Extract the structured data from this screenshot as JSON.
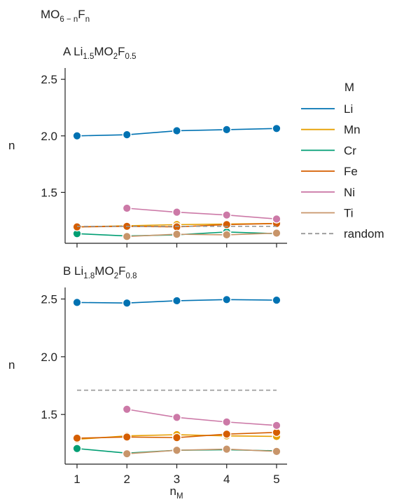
{
  "figure": {
    "title": "MO",
    "title_sub": "6 − n",
    "title_mid": "F",
    "title_sub2": "n"
  },
  "legend": {
    "title": "M",
    "placement": "right",
    "entries": [
      {
        "label": "Li",
        "color": "#0072b2",
        "style": "solid"
      },
      {
        "label": "Mn",
        "color": "#e69f00",
        "style": "solid"
      },
      {
        "label": "Cr",
        "color": "#009e73",
        "style": "solid"
      },
      {
        "label": "Fe",
        "color": "#d55e00",
        "style": "solid"
      },
      {
        "label": "Ni",
        "color": "#cc79a7",
        "style": "solid"
      },
      {
        "label": "Ti",
        "color": "#c8956a",
        "style": "solid"
      },
      {
        "label": "random",
        "color": "#999999",
        "style": "dashed"
      }
    ]
  },
  "chart_data": [
    {
      "type": "line",
      "panel": "A",
      "title_parts": [
        "A Li",
        "1.5",
        "MO",
        "2",
        "F",
        "0.5"
      ],
      "x": [
        1,
        2,
        3,
        4,
        5
      ],
      "xlabel": "",
      "ylabel": "n",
      "ylim": [
        1.05,
        2.6
      ],
      "yticks": [
        1.5,
        2.0,
        2.5
      ],
      "ytick_labels": [
        "1.5",
        "2.0",
        "2.5"
      ],
      "grid": false,
      "series": [
        {
          "name": "Li",
          "color": "#0072b2",
          "values": [
            2.0,
            2.01,
            2.045,
            2.055,
            2.065
          ]
        },
        {
          "name": "Mn",
          "color": "#e69f00",
          "values": [
            1.195,
            1.205,
            1.215,
            1.22,
            1.225
          ]
        },
        {
          "name": "Cr",
          "color": "#009e73",
          "values": [
            1.135,
            1.115,
            1.125,
            1.15,
            1.135
          ]
        },
        {
          "name": "Fe",
          "color": "#d55e00",
          "values": [
            1.195,
            1.2,
            1.195,
            1.215,
            1.225
          ]
        },
        {
          "name": "Ni",
          "color": "#cc79a7",
          "values": [
            null,
            1.36,
            1.325,
            1.3,
            1.265
          ]
        },
        {
          "name": "Ti",
          "color": "#c8956a",
          "values": [
            null,
            1.11,
            1.13,
            1.125,
            1.14
          ]
        },
        {
          "name": "random",
          "color": "#999999",
          "dashed": true,
          "values": [
            1.2,
            1.2,
            1.2,
            1.2,
            1.2
          ]
        }
      ]
    },
    {
      "type": "line",
      "panel": "B",
      "title_parts": [
        "B Li",
        "1.8",
        "MO",
        "2",
        "F",
        "0.8"
      ],
      "x": [
        1,
        2,
        3,
        4,
        5
      ],
      "xticks": [
        1,
        2,
        3,
        4,
        5
      ],
      "xtick_labels": [
        "1",
        "2",
        "3",
        "4",
        "5"
      ],
      "xlabel_parts": [
        "n",
        "M"
      ],
      "ylabel": "n",
      "ylim": [
        1.07,
        2.6
      ],
      "yticks": [
        1.5,
        2.0,
        2.5
      ],
      "ytick_labels": [
        "1.5",
        "2.0",
        "2.5"
      ],
      "grid": false,
      "series": [
        {
          "name": "Li",
          "color": "#0072b2",
          "values": [
            2.47,
            2.465,
            2.485,
            2.495,
            2.49
          ]
        },
        {
          "name": "Mn",
          "color": "#e69f00",
          "values": [
            1.285,
            1.315,
            1.325,
            1.315,
            1.31
          ]
        },
        {
          "name": "Cr",
          "color": "#009e73",
          "values": [
            1.205,
            1.165,
            1.19,
            1.195,
            1.185
          ]
        },
        {
          "name": "Fe",
          "color": "#d55e00",
          "values": [
            1.295,
            1.305,
            1.3,
            1.33,
            1.345
          ]
        },
        {
          "name": "Ni",
          "color": "#cc79a7",
          "values": [
            null,
            1.545,
            1.475,
            1.435,
            1.405
          ]
        },
        {
          "name": "Ti",
          "color": "#c8956a",
          "values": [
            null,
            1.16,
            1.19,
            1.2,
            1.18
          ]
        },
        {
          "name": "random",
          "color": "#999999",
          "dashed": true,
          "values": [
            1.71,
            1.71,
            1.71,
            1.71,
            1.71
          ]
        }
      ]
    }
  ]
}
